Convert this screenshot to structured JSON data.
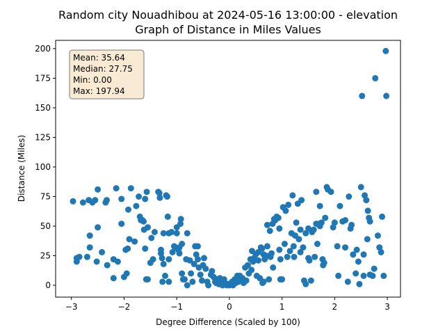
{
  "chart_data": {
    "type": "scatter",
    "title_line1": "Random city Nouadhibou at 2024-05-16 13:00:00  - elevation",
    "title_line2": "Graph of Distance in Miles Values",
    "xlabel": "Degree Difference (Scaled by 100)",
    "ylabel": "Distance (Miles)",
    "xlim": [
      -3.3,
      3.25
    ],
    "ylim": [
      -10,
      207
    ],
    "x_ticks": [
      -3,
      -2,
      -1,
      0,
      1,
      2,
      3
    ],
    "x_tick_labels": [
      "−3",
      "−2",
      "−1",
      "0",
      "1",
      "2",
      "3"
    ],
    "y_ticks": [
      0,
      25,
      50,
      75,
      100,
      125,
      150,
      175,
      200
    ],
    "y_tick_labels": [
      "0",
      "25",
      "50",
      "75",
      "100",
      "125",
      "150",
      "175",
      "200"
    ],
    "marker_color": "#1f77b4",
    "stats": {
      "mean": "Mean: 35.64",
      "median": "Median: 27.75",
      "min": "Min: 0.00",
      "max": "Max: 197.94",
      "box_fill": "#f9ebd3",
      "box_edge": "#777777",
      "placement": "top-left"
    },
    "points": [
      [
        -2.97,
        71
      ],
      [
        -2.9,
        23
      ],
      [
        -2.9,
        20
      ],
      [
        -2.85,
        24
      ],
      [
        -2.85,
        188
      ],
      [
        -2.78,
        70
      ],
      [
        -2.7,
        24
      ],
      [
        -2.67,
        72
      ],
      [
        -2.65,
        183
      ],
      [
        -2.65,
        160
      ],
      [
        -2.6,
        160
      ],
      [
        -2.65,
        42
      ],
      [
        -2.65,
        32
      ],
      [
        -2.6,
        70
      ],
      [
        -2.55,
        72
      ],
      [
        -2.52,
        20
      ],
      [
        -2.5,
        81
      ],
      [
        -2.5,
        49
      ],
      [
        -2.42,
        28
      ],
      [
        -2.35,
        70
      ],
      [
        -2.33,
        72
      ],
      [
        -2.32,
        17
      ],
      [
        -2.2,
        22
      ],
      [
        -2.2,
        6
      ],
      [
        -2.15,
        82
      ],
      [
        -2.12,
        20
      ],
      [
        -2.05,
        73
      ],
      [
        -2.05,
        52
      ],
      [
        -2.0,
        7
      ],
      [
        -1.97,
        30
      ],
      [
        -1.95,
        10
      ],
      [
        -1.93,
        31
      ],
      [
        -1.92,
        64
      ],
      [
        -1.9,
        39
      ],
      [
        -1.87,
        82
      ],
      [
        -1.8,
        37
      ],
      [
        -1.77,
        67
      ],
      [
        -1.72,
        75
      ],
      [
        -1.7,
        58
      ],
      [
        -1.68,
        55
      ],
      [
        -1.65,
        55
      ],
      [
        -1.63,
        54
      ],
      [
        -1.62,
        47
      ],
      [
        -1.6,
        73
      ],
      [
        -1.6,
        31
      ],
      [
        -1.58,
        5
      ],
      [
        -1.57,
        79
      ],
      [
        -1.55,
        49
      ],
      [
        -1.55,
        5
      ],
      [
        -1.5,
        19
      ],
      [
        -1.48,
        40
      ],
      [
        -1.45,
        22
      ],
      [
        -1.42,
        45
      ],
      [
        -1.35,
        79
      ],
      [
        -1.33,
        78
      ],
      [
        -1.32,
        74
      ],
      [
        -1.3,
        30
      ],
      [
        -1.3,
        27
      ],
      [
        -1.28,
        23
      ],
      [
        -1.27,
        3
      ],
      [
        -1.25,
        44
      ],
      [
        -1.25,
        18
      ],
      [
        -1.22,
        8
      ],
      [
        -1.2,
        76
      ],
      [
        -1.18,
        75
      ],
      [
        -1.17,
        58
      ],
      [
        -1.15,
        44
      ],
      [
        -1.15,
        22
      ],
      [
        -1.15,
        3
      ],
      [
        -1.1,
        45
      ],
      [
        -1.08,
        28
      ],
      [
        -1.05,
        33
      ],
      [
        -1.02,
        32
      ],
      [
        -1.0,
        49
      ],
      [
        -1.0,
        44
      ],
      [
        -0.97,
        30
      ],
      [
        -0.95,
        32
      ],
      [
        -0.95,
        27
      ],
      [
        -0.93,
        52
      ],
      [
        -0.92,
        56
      ],
      [
        -0.9,
        35
      ],
      [
        -0.9,
        10
      ],
      [
        -0.88,
        5
      ],
      [
        -0.85,
        5
      ],
      [
        -0.82,
        22
      ],
      [
        -0.8,
        44
      ],
      [
        -0.8,
        0
      ],
      [
        -0.75,
        21
      ],
      [
        -0.73,
        10
      ],
      [
        -0.7,
        3
      ],
      [
        -0.67,
        18
      ],
      [
        -0.65,
        33
      ],
      [
        -0.63,
        26
      ],
      [
        -0.6,
        33
      ],
      [
        -0.6,
        22
      ],
      [
        -0.58,
        15
      ],
      [
        -0.55,
        9
      ],
      [
        -0.52,
        4
      ],
      [
        -0.5,
        17
      ],
      [
        -0.48,
        23
      ],
      [
        -0.45,
        14
      ],
      [
        -0.42,
        3
      ],
      [
        -0.4,
        0
      ],
      [
        -0.35,
        9
      ],
      [
        -0.33,
        12
      ],
      [
        -0.3,
        7
      ],
      [
        -0.27,
        3
      ],
      [
        -0.25,
        2
      ],
      [
        -0.23,
        5
      ],
      [
        -0.2,
        1
      ],
      [
        -0.18,
        6
      ],
      [
        -0.15,
        3
      ],
      [
        -0.13,
        0
      ],
      [
        -0.1,
        5
      ],
      [
        -0.08,
        2
      ],
      [
        -0.05,
        0
      ],
      [
        -0.02,
        1
      ],
      [
        0.0,
        0
      ],
      [
        0.02,
        1
      ],
      [
        0.05,
        3
      ],
      [
        0.07,
        0
      ],
      [
        0.1,
        5
      ],
      [
        0.12,
        2
      ],
      [
        0.15,
        8
      ],
      [
        0.17,
        3
      ],
      [
        0.2,
        8
      ],
      [
        0.22,
        5
      ],
      [
        0.25,
        6
      ],
      [
        0.27,
        2
      ],
      [
        0.3,
        15
      ],
      [
        0.32,
        4
      ],
      [
        0.35,
        17
      ],
      [
        0.37,
        10
      ],
      [
        0.4,
        22
      ],
      [
        0.42,
        13
      ],
      [
        0.43,
        29
      ],
      [
        0.45,
        20
      ],
      [
        0.47,
        23
      ],
      [
        0.5,
        26
      ],
      [
        0.52,
        8
      ],
      [
        0.55,
        28
      ],
      [
        0.55,
        21
      ],
      [
        0.58,
        6
      ],
      [
        0.6,
        32
      ],
      [
        0.62,
        31
      ],
      [
        0.63,
        2
      ],
      [
        0.65,
        26
      ],
      [
        0.65,
        3
      ],
      [
        0.67,
        22
      ],
      [
        0.7,
        25
      ],
      [
        0.72,
        51
      ],
      [
        0.72,
        33
      ],
      [
        0.75,
        5
      ],
      [
        0.77,
        46
      ],
      [
        0.78,
        24
      ],
      [
        0.8,
        27
      ],
      [
        0.82,
        52
      ],
      [
        0.83,
        15
      ],
      [
        0.85,
        56
      ],
      [
        0.87,
        55
      ],
      [
        0.9,
        58
      ],
      [
        0.93,
        57
      ],
      [
        0.95,
        48
      ],
      [
        0.95,
        30
      ],
      [
        0.97,
        22
      ],
      [
        0.97,
        5
      ],
      [
        1.0,
        5
      ],
      [
        1.02,
        66
      ],
      [
        1.05,
        35
      ],
      [
        1.07,
        63
      ],
      [
        1.1,
        24
      ],
      [
        1.12,
        68
      ],
      [
        1.15,
        29
      ],
      [
        1.18,
        44
      ],
      [
        1.2,
        76
      ],
      [
        1.22,
        33
      ],
      [
        1.23,
        24
      ],
      [
        1.25,
        42
      ],
      [
        1.27,
        53
      ],
      [
        1.3,
        69
      ],
      [
        1.32,
        39
      ],
      [
        1.35,
        47
      ],
      [
        1.35,
        28
      ],
      [
        1.37,
        72
      ],
      [
        1.4,
        32
      ],
      [
        1.42,
        4
      ],
      [
        1.45,
        1
      ],
      [
        1.45,
        44
      ],
      [
        1.5,
        48
      ],
      [
        1.5,
        23
      ],
      [
        1.52,
        21
      ],
      [
        1.55,
        4
      ],
      [
        1.57,
        45
      ],
      [
        1.6,
        47
      ],
      [
        1.62,
        24
      ],
      [
        1.65,
        79
      ],
      [
        1.65,
        52
      ],
      [
        1.67,
        35
      ],
      [
        1.7,
        52
      ],
      [
        1.72,
        67
      ],
      [
        1.72,
        50
      ],
      [
        1.75,
        53
      ],
      [
        1.77,
        22
      ],
      [
        1.78,
        17
      ],
      [
        1.8,
        19
      ],
      [
        1.82,
        57
      ],
      [
        1.85,
        83
      ],
      [
        1.87,
        81
      ],
      [
        1.93,
        79
      ],
      [
        1.97,
        49
      ],
      [
        2.0,
        53
      ],
      [
        2.05,
        33
      ],
      [
        2.07,
        8
      ],
      [
        2.1,
        67
      ],
      [
        2.15,
        54
      ],
      [
        2.2,
        55
      ],
      [
        2.2,
        32
      ],
      [
        2.25,
        3
      ],
      [
        2.27,
        75
      ],
      [
        2.3,
        48
      ],
      [
        2.32,
        51
      ],
      [
        2.35,
        26
      ],
      [
        2.4,
        10
      ],
      [
        2.42,
        30
      ],
      [
        2.45,
        20
      ],
      [
        2.47,
        1
      ],
      [
        2.5,
        83
      ],
      [
        2.52,
        160
      ],
      [
        2.55,
        26
      ],
      [
        2.55,
        8
      ],
      [
        2.57,
        76
      ],
      [
        2.6,
        72
      ],
      [
        2.62,
        39
      ],
      [
        2.63,
        63
      ],
      [
        2.65,
        57
      ],
      [
        2.67,
        54
      ],
      [
        2.67,
        9
      ],
      [
        2.72,
        8
      ],
      [
        2.75,
        14
      ],
      [
        2.77,
        175
      ],
      [
        2.82,
        42
      ],
      [
        2.85,
        32
      ],
      [
        2.88,
        28
      ],
      [
        2.9,
        58
      ],
      [
        2.93,
        8
      ],
      [
        2.97,
        198
      ],
      [
        2.98,
        160
      ]
    ]
  }
}
